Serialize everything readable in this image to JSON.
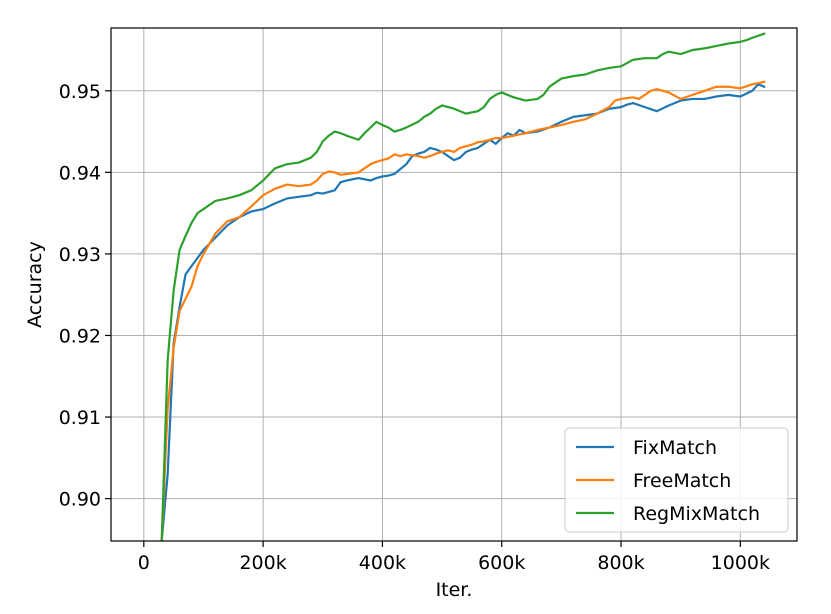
{
  "chart_data": {
    "type": "line",
    "xlabel": "Iter.",
    "ylabel": "Accuracy",
    "xlim": [
      -55000,
      1095000
    ],
    "ylim": [
      0.8948,
      0.9577
    ],
    "xticks": [
      0,
      200000,
      400000,
      600000,
      800000,
      1000000
    ],
    "xtick_labels": [
      "0",
      "200k",
      "400k",
      "600k",
      "800k",
      "1000k"
    ],
    "yticks": [
      0.9,
      0.91,
      0.92,
      0.93,
      0.94,
      0.95
    ],
    "ytick_labels": [
      "0.90",
      "0.91",
      "0.92",
      "0.93",
      "0.94",
      "0.95"
    ],
    "grid": true,
    "legend_position": "lower-right",
    "series": [
      {
        "name": "FixMatch",
        "color": "#1f77b4",
        "x": [
          30000,
          40000,
          50000,
          60000,
          70000,
          80000,
          90000,
          100000,
          120000,
          140000,
          160000,
          180000,
          200000,
          220000,
          240000,
          260000,
          280000,
          290000,
          300000,
          310000,
          320000,
          330000,
          340000,
          360000,
          380000,
          390000,
          400000,
          410000,
          420000,
          440000,
          450000,
          460000,
          470000,
          480000,
          490000,
          500000,
          510000,
          520000,
          530000,
          540000,
          550000,
          560000,
          570000,
          580000,
          590000,
          600000,
          610000,
          620000,
          630000,
          640000,
          660000,
          680000,
          700000,
          720000,
          740000,
          760000,
          780000,
          800000,
          810000,
          820000,
          840000,
          860000,
          880000,
          900000,
          920000,
          940000,
          960000,
          980000,
          1000000,
          1020000,
          1030000,
          1040000
        ],
        "y": [
          0.8948,
          0.903,
          0.919,
          0.9235,
          0.9275,
          0.9285,
          0.9295,
          0.9305,
          0.932,
          0.9335,
          0.9345,
          0.9352,
          0.9355,
          0.9362,
          0.9368,
          0.937,
          0.9372,
          0.9375,
          0.9374,
          0.9376,
          0.9378,
          0.9388,
          0.939,
          0.9393,
          0.939,
          0.9393,
          0.9395,
          0.9396,
          0.9398,
          0.941,
          0.942,
          0.9423,
          0.9425,
          0.943,
          0.9428,
          0.9425,
          0.942,
          0.9415,
          0.9418,
          0.9425,
          0.9428,
          0.943,
          0.9435,
          0.944,
          0.9435,
          0.9442,
          0.9448,
          0.9445,
          0.9452,
          0.9448,
          0.945,
          0.9455,
          0.9462,
          0.9468,
          0.947,
          0.9472,
          0.9478,
          0.948,
          0.9483,
          0.9485,
          0.948,
          0.9475,
          0.9482,
          0.9488,
          0.949,
          0.949,
          0.9493,
          0.9495,
          0.9493,
          0.95,
          0.9508,
          0.9505
        ]
      },
      {
        "name": "FreeMatch",
        "color": "#ff7f0e",
        "x": [
          30000,
          40000,
          50000,
          60000,
          70000,
          80000,
          90000,
          100000,
          120000,
          140000,
          160000,
          180000,
          200000,
          220000,
          240000,
          260000,
          280000,
          290000,
          300000,
          310000,
          320000,
          330000,
          340000,
          360000,
          370000,
          380000,
          390000,
          400000,
          410000,
          420000,
          430000,
          440000,
          460000,
          470000,
          480000,
          490000,
          500000,
          510000,
          520000,
          530000,
          540000,
          550000,
          560000,
          570000,
          580000,
          590000,
          600000,
          620000,
          640000,
          660000,
          680000,
          700000,
          720000,
          740000,
          760000,
          780000,
          790000,
          800000,
          820000,
          830000,
          840000,
          850000,
          860000,
          870000,
          880000,
          900000,
          920000,
          940000,
          960000,
          980000,
          1000000,
          1020000,
          1040000
        ],
        "y": [
          0.8948,
          0.911,
          0.9185,
          0.923,
          0.9245,
          0.926,
          0.9285,
          0.93,
          0.9325,
          0.934,
          0.9345,
          0.9358,
          0.9372,
          0.938,
          0.9385,
          0.9383,
          0.9385,
          0.939,
          0.9398,
          0.9401,
          0.94,
          0.9397,
          0.9398,
          0.94,
          0.9405,
          0.941,
          0.9413,
          0.9415,
          0.9417,
          0.9422,
          0.942,
          0.9422,
          0.942,
          0.9418,
          0.942,
          0.9423,
          0.9425,
          0.9427,
          0.9425,
          0.943,
          0.9432,
          0.9434,
          0.9437,
          0.9438,
          0.944,
          0.9442,
          0.9442,
          0.9445,
          0.9448,
          0.9452,
          0.9455,
          0.9458,
          0.9462,
          0.9465,
          0.9472,
          0.948,
          0.9488,
          0.949,
          0.9492,
          0.949,
          0.9495,
          0.95,
          0.9502,
          0.95,
          0.9498,
          0.949,
          0.9495,
          0.95,
          0.9505,
          0.9505,
          0.9503,
          0.9508,
          0.9511
        ]
      },
      {
        "name": "RegMixMatch",
        "color": "#2ca02c",
        "x": [
          30000,
          40000,
          50000,
          60000,
          70000,
          80000,
          90000,
          100000,
          120000,
          140000,
          160000,
          180000,
          200000,
          220000,
          240000,
          260000,
          280000,
          290000,
          300000,
          310000,
          320000,
          330000,
          340000,
          360000,
          370000,
          380000,
          390000,
          400000,
          410000,
          420000,
          430000,
          440000,
          460000,
          470000,
          480000,
          490000,
          500000,
          520000,
          540000,
          560000,
          570000,
          580000,
          590000,
          600000,
          620000,
          640000,
          660000,
          670000,
          680000,
          700000,
          720000,
          740000,
          760000,
          780000,
          800000,
          820000,
          840000,
          860000,
          870000,
          880000,
          900000,
          920000,
          940000,
          960000,
          980000,
          1000000,
          1010000,
          1020000,
          1040000
        ],
        "y": [
          0.8948,
          0.917,
          0.9255,
          0.9305,
          0.9322,
          0.9338,
          0.935,
          0.9355,
          0.9365,
          0.9368,
          0.9372,
          0.9378,
          0.939,
          0.9405,
          0.941,
          0.9412,
          0.9418,
          0.9425,
          0.9438,
          0.9445,
          0.945,
          0.9448,
          0.9445,
          0.944,
          0.9448,
          0.9455,
          0.9462,
          0.9458,
          0.9455,
          0.945,
          0.9452,
          0.9455,
          0.9462,
          0.9468,
          0.9472,
          0.9478,
          0.9482,
          0.9478,
          0.9472,
          0.9475,
          0.948,
          0.949,
          0.9495,
          0.9498,
          0.9492,
          0.9488,
          0.949,
          0.9495,
          0.9505,
          0.9515,
          0.9518,
          0.952,
          0.9525,
          0.9528,
          0.953,
          0.9538,
          0.954,
          0.954,
          0.9545,
          0.9548,
          0.9545,
          0.955,
          0.9552,
          0.9555,
          0.9558,
          0.956,
          0.9562,
          0.9565,
          0.957
        ]
      }
    ]
  }
}
